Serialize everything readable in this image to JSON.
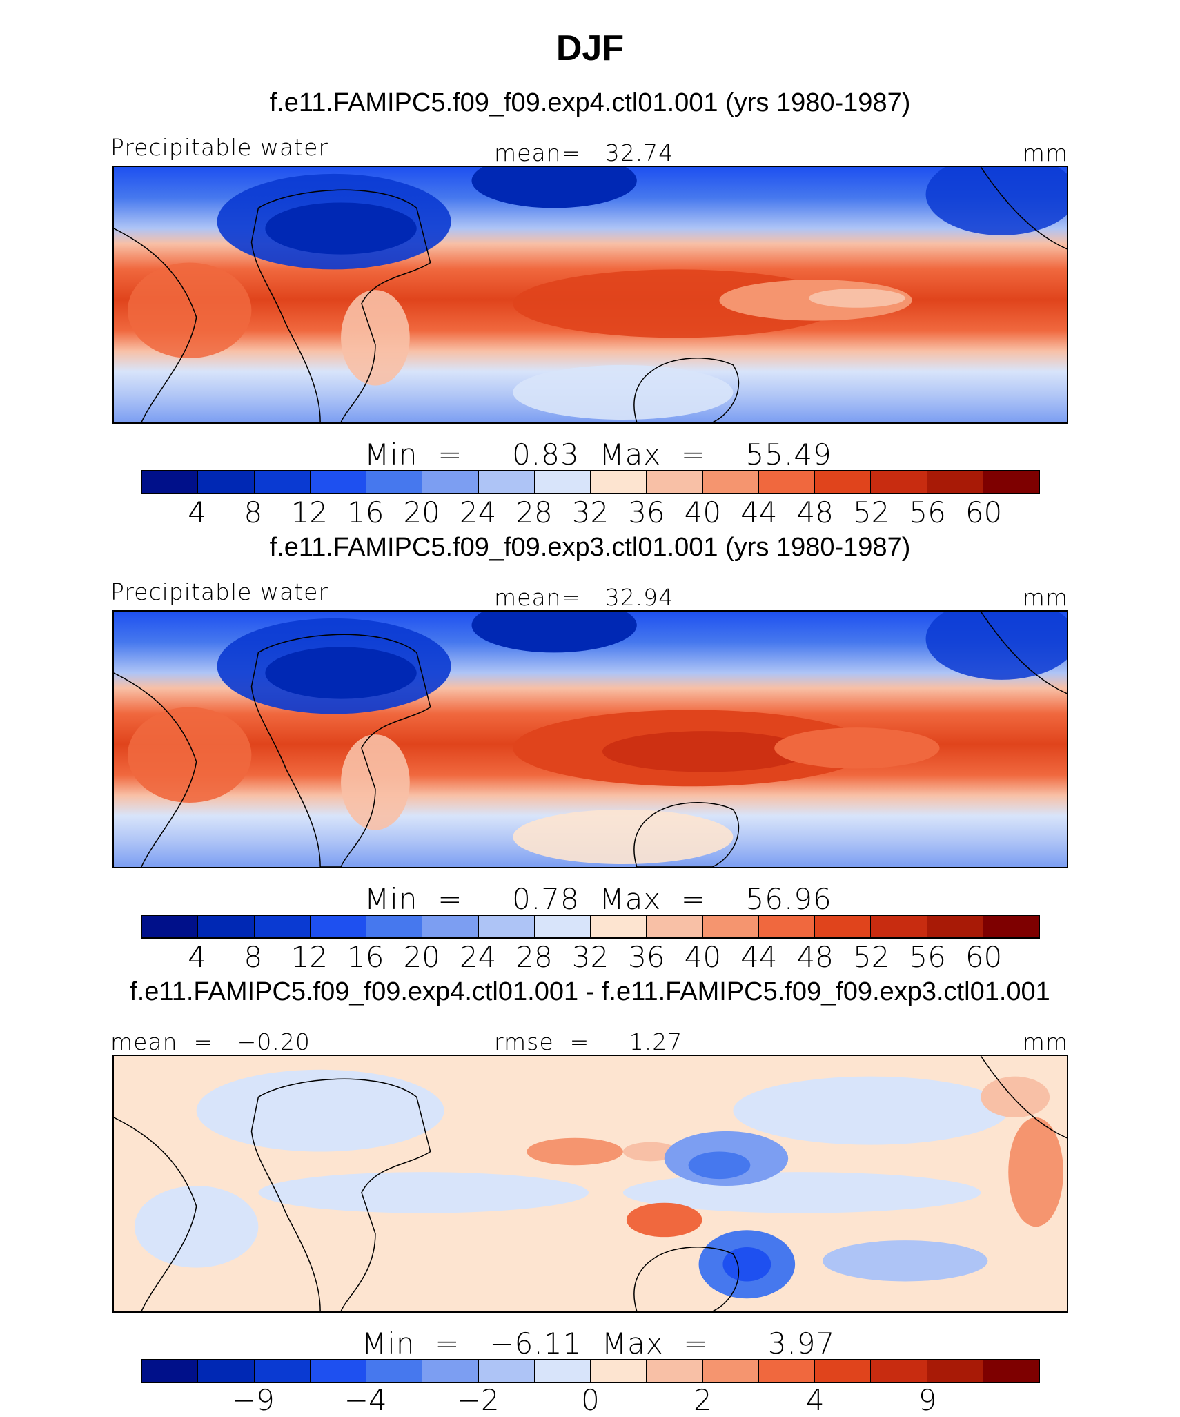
{
  "figure_title": "DJF",
  "units_label": "mm",
  "panels": [
    {
      "case_title": "f.e11.FAMIPC5.f09_f09.exp4.ctl01.001 (yrs 1980-1987)",
      "left_label": "Precipitable water",
      "center_label": "mean=   32.74",
      "right_label": "mm",
      "min_max": "Min  =     0.83  Max  =    55.49",
      "colorbar_ticks": [
        "4",
        "8",
        "12",
        "16",
        "20",
        "24",
        "28",
        "32",
        "36",
        "40",
        "44",
        "48",
        "52",
        "56",
        "60"
      ]
    },
    {
      "case_title": "f.e11.FAMIPC5.f09_f09.exp3.ctl01.001 (yrs 1980-1987)",
      "left_label": "Precipitable water",
      "center_label": "mean=   32.94",
      "right_label": "mm",
      "min_max": "Min  =     0.78  Max  =    56.96",
      "colorbar_ticks": [
        "4",
        "8",
        "12",
        "16",
        "20",
        "24",
        "28",
        "32",
        "36",
        "40",
        "44",
        "48",
        "52",
        "56",
        "60"
      ]
    },
    {
      "case_title": "f.e11.FAMIPC5.f09_f09.exp4.ctl01.001 - f.e11.FAMIPC5.f09_f09.exp3.ctl01.001",
      "left_label": "mean  =   −0.20",
      "center_label": "rmse  =     1.27",
      "right_label": "mm",
      "min_max": "Min  =   −6.11  Max  =      3.97",
      "colorbar_ticks": [
        "−9",
        "−4",
        "−2",
        "0",
        "2",
        "4",
        "9"
      ]
    }
  ],
  "colors": {
    "abs_scale": [
      "#00108a",
      "#0028b4",
      "#0a3ad2",
      "#1e50f0",
      "#4678ee",
      "#7c9ef2",
      "#aec4f6",
      "#d8e4fa",
      "#fde4d0",
      "#f8c0a6",
      "#f5956f",
      "#f0683e",
      "#e0441c",
      "#c82c10",
      "#a81a06",
      "#7e0000"
    ],
    "diff_scale": [
      "#00108a",
      "#0028b4",
      "#0a3ad2",
      "#1e50f0",
      "#4678ee",
      "#7c9ef2",
      "#aec4f6",
      "#d8e4fa",
      "#fde4d0",
      "#f8c0a6",
      "#f5956f",
      "#f0683e",
      "#e0441c",
      "#c82c10",
      "#a81a06",
      "#7e0000"
    ]
  }
}
